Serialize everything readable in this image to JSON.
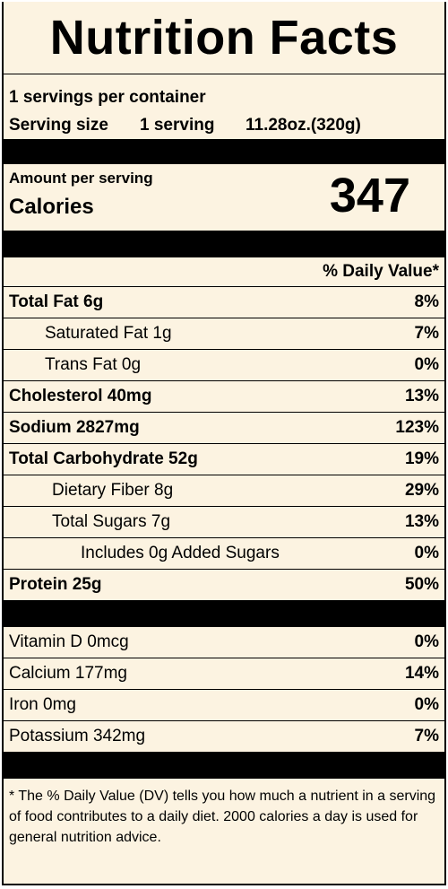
{
  "title": "Nutrition Facts",
  "serving": {
    "per_container": "1 servings per container",
    "size_label": "Serving size",
    "size_value": "1 serving",
    "size_weight": "11.28oz.(320g)"
  },
  "calories": {
    "amount_label": "Amount per serving",
    "label": "Calories",
    "value": "347"
  },
  "daily_value_header": "% Daily Value*",
  "nutrients": [
    {
      "name": "Total Fat 6g",
      "pct": "8%"
    },
    {
      "name": "Saturated Fat 1g",
      "pct": "7%"
    },
    {
      "name": "Trans Fat 0g",
      "pct": "0%"
    },
    {
      "name": "Cholesterol 40mg",
      "pct": "13%"
    },
    {
      "name": "Sodium 2827mg",
      "pct": "123%"
    },
    {
      "name": "Total Carbohydrate 52g",
      "pct": "19%"
    },
    {
      "name": "Dietary Fiber 8g",
      "pct": "29%"
    },
    {
      "name": "Total Sugars 7g",
      "pct": "13%"
    },
    {
      "name": "Includes 0g Added Sugars",
      "pct": "0%"
    },
    {
      "name": "Protein 25g",
      "pct": "50%"
    }
  ],
  "vitamins": [
    {
      "name": "Vitamin D 0mcg",
      "pct": "0%"
    },
    {
      "name": "Calcium 177mg",
      "pct": "14%"
    },
    {
      "name": "Iron 0mg",
      "pct": "0%"
    },
    {
      "name": "Potassium 342mg",
      "pct": "7%"
    }
  ],
  "footnote": "* The % Daily Value (DV) tells you how much a nutrient in a serving of food contributes to a daily diet. 2000 calories a day is used for general nutrition advice.",
  "colors": {
    "background": "#fcf3e1",
    "rule": "#000000"
  }
}
